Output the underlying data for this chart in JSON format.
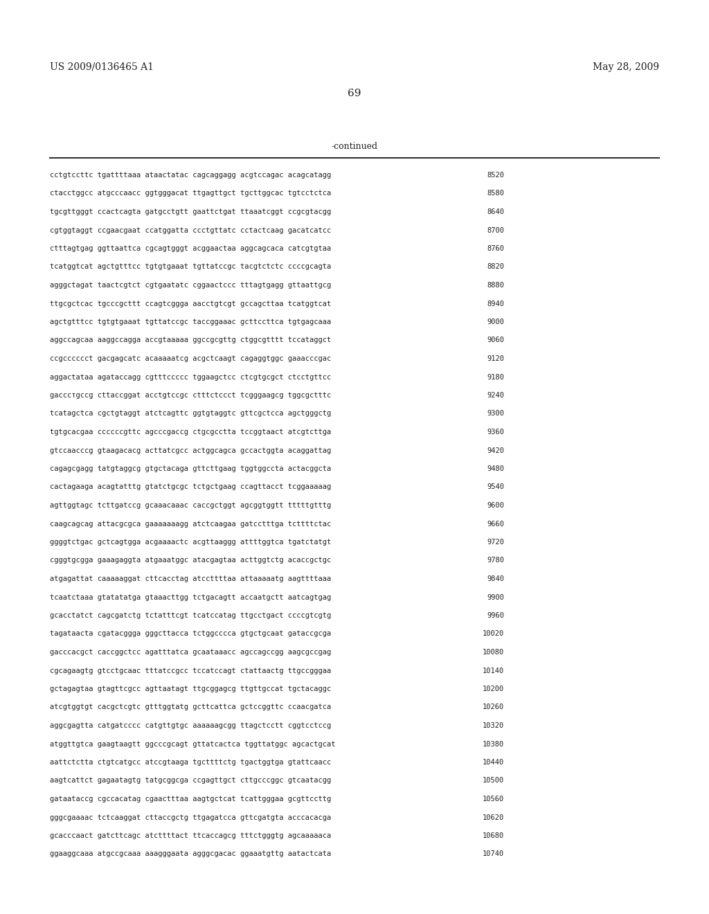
{
  "header_left": "US 2009/0136465 A1",
  "header_right": "May 28, 2009",
  "page_number": "69",
  "continued_label": "-continued",
  "background_color": "#ffffff",
  "text_color": "#231f20",
  "font_size": 7.5,
  "header_fontsize": 10.0,
  "page_fontsize": 11.0,
  "continued_fontsize": 9.0,
  "lines": [
    [
      "cctgtccttc tgattttaaa ataactatac cagcaggagg acgtccagac acagcatagg",
      "8520"
    ],
    [
      "ctacctggcc atgcccaacc ggtgggacat ttgagttgct tgcttggcac tgtcctctca",
      "8580"
    ],
    [
      "tgcgttgggt ccactcagta gatgcctgtt gaattctgat ttaaatcggt ccgcgtacgg",
      "8640"
    ],
    [
      "cgtggtaggt ccgaacgaat ccatggatta ccctgttatc cctactcaag gacatcatcc",
      "8700"
    ],
    [
      "ctttagtgag ggttaattca cgcagtgggt acggaactaa aggcagcaca catcgtgtaa",
      "8760"
    ],
    [
      "tcatggtcat agctgtttcc tgtgtgaaat tgttatccgc tacgtctctc ccccgcagta",
      "8820"
    ],
    [
      "agggctagat taactcgtct cgtgaatatc cggaactccc tttagtgagg gttaattgcg",
      "8880"
    ],
    [
      "ttgcgctcac tgcccgcttt ccagtcggga aacctgtcgt gccagcttaa tcatggtcat",
      "8940"
    ],
    [
      "agctgtttcc tgtgtgaaat tgttatccgc taccggaaac gcttccttca tgtgagcaaa",
      "9000"
    ],
    [
      "aggccagcaa aaggccagga accgtaaaaa ggccgcgttg ctggcgtttt tccataggct",
      "9060"
    ],
    [
      "ccgcccccct gacgagcatc acaaaaatcg acgctcaagt cagaggtggc gaaacccgac",
      "9120"
    ],
    [
      "aggactataa agataccagg cgtttccccc tggaagctcc ctcgtgcgct ctcctgttcc",
      "9180"
    ],
    [
      "gacccтgccg cttaccggat acctgtccgc ctttctccct tcgggaagcg tggcgctttc",
      "9240"
    ],
    [
      "tcatagctca cgctgtaggt atctcagttc ggtgtaggtc gttcgctcca agctgggctg",
      "9300"
    ],
    [
      "tgtgcacgaa ccccccgttc agcccgaccg ctgcgcctta tccggtaact atcgtcttga",
      "9360"
    ],
    [
      "gtccaacccg gtaagacacg acttatcgcc actggcagca gccactggta acaggattag",
      "9420"
    ],
    [
      "cagagcgagg tatgtaggcg gtgctacaga gttcttgaag tggtggccta actacggcta",
      "9480"
    ],
    [
      "cactagaaga acagtatttg gtatctgcgc tctgctgaag ccagttacct tcggaaaaag",
      "9540"
    ],
    [
      "agttggtagc tcttgatccg gcaaacaaac caccgctggt agcggtggtt tttttgtttg",
      "9600"
    ],
    [
      "caagcagcag attacgcgca gaaaaaaagg atctcaagaa gatcctttga tcttttctac",
      "9660"
    ],
    [
      "ggggtctgac gctcagtgga acgaaaactc acgttaaggg attttggtca tgatctatgt",
      "9720"
    ],
    [
      "cgggtgcgga gaaagaggta atgaaatggc atacgagtaa acttggtctg acaccgctgc",
      "9780"
    ],
    [
      "atgagattat caaaaaggat cttcacctag atccttttaa attaaaaatg aagttttaaa",
      "9840"
    ],
    [
      "tcaatctaaa gtatatatga gtaaacttgg tctgacagtt accaatgctt aatcagtgag",
      "9900"
    ],
    [
      "gcacctatct cagcgatctg tctatttcgt tcatccatag ttgcctgact ccccgtcgtg",
      "9960"
    ],
    [
      "tagataacta cgatacggga gggcttacca tctggcccca gtgctgcaat gataccgcga",
      "10020"
    ],
    [
      "gacccacgct caccggctcc agatttatca gcaataaacc agccagccgg aagcgccgag",
      "10080"
    ],
    [
      "cgcagaagtg gtcctgcaac tttatccgcc tccatccagt ctattaactg ttgccgggaa",
      "10140"
    ],
    [
      "gctagagtaa gtagttcgcc agttaatagt ttgcggagcg ttgttgccat tgctacaggc",
      "10200"
    ],
    [
      "atcgtggtgt cacgctcgtc gtttggtatg gcttcattca gctccggttc ccaacgatca",
      "10260"
    ],
    [
      "aggcgagtta catgatcccc catgttgtgc aaaaaagcgg ttagctcctt cggtcctccg",
      "10320"
    ],
    [
      "atggttgtca gaagtaagtt ggcccgcagt gttatcactca tggttatggc agcactgcat",
      "10380"
    ],
    [
      "aattctctta ctgtcatgcc atccgtaaga tgcttttctg tgactggtga gtattcaacc",
      "10440"
    ],
    [
      "aagtcattct gagaatagtg tatgcggcga ccgagttgct cttgcccggc gtcaatacgg",
      "10500"
    ],
    [
      "gataataccg cgccacatag cgaactttaa aagtgctcat tcattgggaa gcgttccttg",
      "10560"
    ],
    [
      "gggcgaaaac tctcaaggat cttaccgctg ttgagatcca gttcgatgta acccacacga",
      "10620"
    ],
    [
      "gcacccaact gatcttcagc atcttttact ttcaccagcg tttctgggtg agcaaaaaca",
      "10680"
    ],
    [
      "ggaaggcaaa atgccgcaaa aaagggaata agggcgacac ggaaatgttg aatactcata",
      "10740"
    ]
  ]
}
